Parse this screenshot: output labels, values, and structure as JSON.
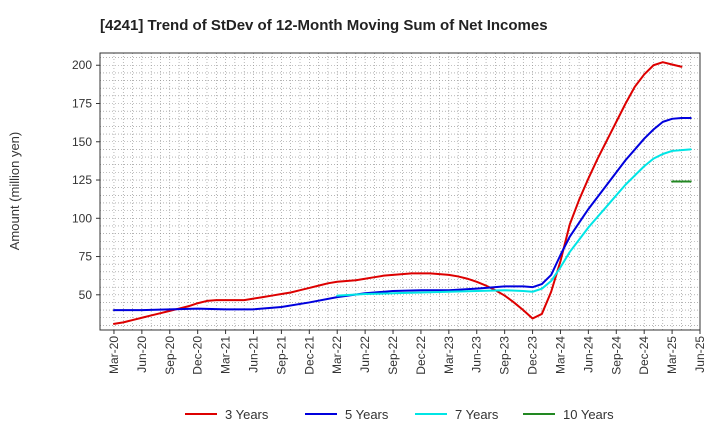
{
  "chart_data": {
    "type": "line",
    "title": "[4241]  Trend of StDev of 12-Month Moving Sum of Net Incomes",
    "ylabel": "Amount (million yen)",
    "xlabel": "",
    "ylim": [
      27,
      208
    ],
    "yticks": [
      50,
      75,
      100,
      125,
      150,
      175,
      200
    ],
    "x_tick_labels": [
      "Mar-20",
      "Jun-20",
      "Sep-20",
      "Dec-20",
      "Mar-21",
      "Jun-21",
      "Sep-21",
      "Dec-21",
      "Mar-22",
      "Jun-22",
      "Sep-22",
      "Dec-22",
      "Mar-23",
      "Jun-23",
      "Sep-23",
      "Dec-23",
      "Mar-24",
      "Jun-24",
      "Sep-24",
      "Dec-24",
      "Mar-25",
      "Jun-25"
    ],
    "grid": true,
    "grid_style": "dotted",
    "legend_position": "bottom",
    "series": [
      {
        "name": "3 Years",
        "color": "#dd0000",
        "points": [
          [
            "Mar-20",
            31
          ],
          [
            "Apr-20",
            32
          ],
          [
            "May-20",
            33.5
          ],
          [
            "Jun-20",
            35
          ],
          [
            "Jul-20",
            36.5
          ],
          [
            "Aug-20",
            38
          ],
          [
            "Sep-20",
            39.5
          ],
          [
            "Oct-20",
            41
          ],
          [
            "Nov-20",
            42.5
          ],
          [
            "Dec-20",
            44.5
          ],
          [
            "Jan-21",
            46
          ],
          [
            "Feb-21",
            46.5
          ],
          [
            "Mar-21",
            46.5
          ],
          [
            "Apr-21",
            46.5
          ],
          [
            "May-21",
            46.5
          ],
          [
            "Jun-21",
            47.5
          ],
          [
            "Jul-21",
            48.5
          ],
          [
            "Aug-21",
            49.5
          ],
          [
            "Sep-21",
            50.5
          ],
          [
            "Oct-21",
            51.5
          ],
          [
            "Nov-21",
            53
          ],
          [
            "Dec-21",
            54.5
          ],
          [
            "Jan-22",
            56
          ],
          [
            "Feb-22",
            57.5
          ],
          [
            "Mar-22",
            58.5
          ],
          [
            "Apr-22",
            59
          ],
          [
            "May-22",
            59.5
          ],
          [
            "Jun-22",
            60.5
          ],
          [
            "Jul-22",
            61.5
          ],
          [
            "Aug-22",
            62.5
          ],
          [
            "Sep-22",
            63
          ],
          [
            "Oct-22",
            63.5
          ],
          [
            "Nov-22",
            64
          ],
          [
            "Dec-22",
            64
          ],
          [
            "Jan-23",
            64
          ],
          [
            "Feb-23",
            63.5
          ],
          [
            "Mar-23",
            63
          ],
          [
            "Apr-23",
            62
          ],
          [
            "May-23",
            60.5
          ],
          [
            "Jun-23",
            58.5
          ],
          [
            "Jul-23",
            56
          ],
          [
            "Aug-23",
            53
          ],
          [
            "Sep-23",
            49.5
          ],
          [
            "Oct-23",
            45
          ],
          [
            "Nov-23",
            40
          ],
          [
            "Dec-23",
            34.5
          ],
          [
            "Jan-24",
            37.5
          ],
          [
            "Feb-24",
            52
          ],
          [
            "Mar-24",
            72
          ],
          [
            "Apr-24",
            96
          ],
          [
            "May-24",
            112
          ],
          [
            "Jun-24",
            126
          ],
          [
            "Jul-24",
            139
          ],
          [
            "Aug-24",
            151
          ],
          [
            "Sep-24",
            163
          ],
          [
            "Oct-24",
            175
          ],
          [
            "Nov-24",
            186
          ],
          [
            "Dec-24",
            194
          ],
          [
            "Jan-25",
            200
          ],
          [
            "Feb-25",
            202
          ],
          [
            "Mar-25",
            200.5
          ],
          [
            "Apr-25",
            199
          ]
        ]
      },
      {
        "name": "5 Years",
        "color": "#0000dd",
        "points": [
          [
            "Mar-20",
            40
          ],
          [
            "Jun-20",
            40
          ],
          [
            "Sep-20",
            40.5
          ],
          [
            "Dec-20",
            41
          ],
          [
            "Mar-21",
            40.5
          ],
          [
            "Jun-21",
            40.5
          ],
          [
            "Sep-21",
            42
          ],
          [
            "Dec-21",
            45
          ],
          [
            "Mar-22",
            48.5
          ],
          [
            "Jun-22",
            51
          ],
          [
            "Sep-22",
            52.5
          ],
          [
            "Dec-22",
            53
          ],
          [
            "Mar-23",
            53
          ],
          [
            "Jun-23",
            54
          ],
          [
            "Sep-23",
            55.5
          ],
          [
            "Nov-23",
            55.5
          ],
          [
            "Dec-23",
            55
          ],
          [
            "Jan-24",
            57
          ],
          [
            "Feb-24",
            63
          ],
          [
            "Mar-24",
            76
          ],
          [
            "Apr-24",
            88
          ],
          [
            "May-24",
            97
          ],
          [
            "Jun-24",
            106
          ],
          [
            "Jul-24",
            114
          ],
          [
            "Aug-24",
            122
          ],
          [
            "Sep-24",
            130
          ],
          [
            "Oct-24",
            138
          ],
          [
            "Nov-24",
            145
          ],
          [
            "Dec-24",
            152
          ],
          [
            "Jan-25",
            158
          ],
          [
            "Feb-25",
            163
          ],
          [
            "Mar-25",
            165
          ],
          [
            "Apr-25",
            165.5
          ],
          [
            "May-25",
            165.5
          ]
        ]
      },
      {
        "name": "7 Years",
        "color": "#00e5e5",
        "points": [
          [
            "Mar-22",
            49.5
          ],
          [
            "Jun-22",
            50.5
          ],
          [
            "Sep-22",
            51
          ],
          [
            "Dec-22",
            51.5
          ],
          [
            "Mar-23",
            52
          ],
          [
            "Jun-23",
            52.5
          ],
          [
            "Sep-23",
            53
          ],
          [
            "Nov-23",
            52.5
          ],
          [
            "Dec-23",
            52
          ],
          [
            "Jan-24",
            54
          ],
          [
            "Feb-24",
            59
          ],
          [
            "Mar-24",
            68
          ],
          [
            "Apr-24",
            78
          ],
          [
            "May-24",
            86
          ],
          [
            "Jun-24",
            94
          ],
          [
            "Jul-24",
            101
          ],
          [
            "Aug-24",
            108
          ],
          [
            "Sep-24",
            115
          ],
          [
            "Oct-24",
            122
          ],
          [
            "Nov-24",
            128
          ],
          [
            "Dec-24",
            134
          ],
          [
            "Jan-25",
            139
          ],
          [
            "Feb-25",
            142
          ],
          [
            "Mar-25",
            144
          ],
          [
            "Apr-25",
            144.5
          ],
          [
            "May-25",
            145
          ]
        ]
      },
      {
        "name": "10 Years",
        "color": "#228822",
        "points": [
          [
            "Mar-25",
            124
          ],
          [
            "May-25",
            124
          ]
        ]
      }
    ]
  }
}
